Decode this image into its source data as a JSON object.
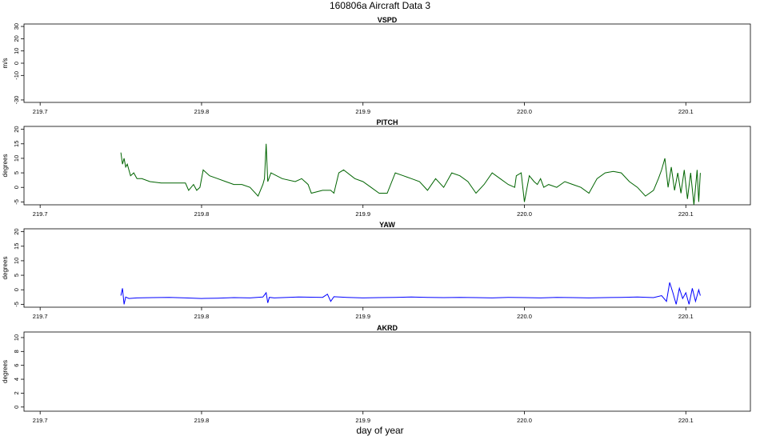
{
  "title": "160806a   Aircraft Data 3",
  "xlabel": "day of year",
  "chart_data": [
    {
      "type": "line",
      "title": "VSPD",
      "ylabel": "m/s",
      "xlim": [
        219.69,
        220.14
      ],
      "ylim": [
        -32,
        32
      ],
      "xticks": [
        219.7,
        219.8,
        219.9,
        220.0,
        220.1
      ],
      "xtick_labels": [
        "219.7",
        "219.8",
        "219.9",
        "220.0",
        "220.1"
      ],
      "yticks": [
        30,
        20,
        10,
        0,
        -10,
        -30
      ],
      "ytick_labels": [
        "30",
        "20",
        "10",
        "0",
        "-10",
        "-30"
      ],
      "color": "#000000",
      "series": []
    },
    {
      "type": "line",
      "title": "PITCH",
      "ylabel": "degrees",
      "xlim": [
        219.69,
        220.14
      ],
      "ylim": [
        -6,
        21
      ],
      "xticks": [
        219.7,
        219.8,
        219.9,
        220.0,
        220.1
      ],
      "xtick_labels": [
        "219.7",
        "219.8",
        "219.9",
        "220.0",
        "220.1"
      ],
      "yticks": [
        20,
        15,
        10,
        5,
        0,
        -5
      ],
      "ytick_labels": [
        "20",
        "15",
        "10",
        "5",
        "0",
        "-5"
      ],
      "color": "#006400",
      "series": [
        {
          "x": [
            219.75,
            219.751,
            219.752,
            219.753,
            219.754,
            219.756,
            219.758,
            219.76,
            219.763,
            219.768,
            219.775,
            219.785,
            219.79,
            219.792,
            219.795,
            219.797,
            219.799,
            219.801,
            219.805,
            219.81,
            219.815,
            219.82,
            219.825,
            219.83,
            219.835,
            219.838,
            219.839,
            219.84,
            219.841,
            219.843,
            219.85,
            219.858,
            219.862,
            219.866,
            219.868,
            219.875,
            219.88,
            219.882,
            219.885,
            219.888,
            219.895,
            219.9,
            219.905,
            219.91,
            219.915,
            219.92,
            219.925,
            219.93,
            219.935,
            219.94,
            219.945,
            219.95,
            219.955,
            219.96,
            219.965,
            219.97,
            219.975,
            219.98,
            219.985,
            219.99,
            219.994,
            219.995,
            219.998,
            220.0,
            220.003,
            220.006,
            220.008,
            220.01,
            220.012,
            220.015,
            220.02,
            220.025,
            220.03,
            220.035,
            220.04,
            220.045,
            220.05,
            220.055,
            220.06,
            220.065,
            220.07,
            220.075,
            220.08,
            220.083,
            220.085,
            220.087,
            220.089,
            220.091,
            220.093,
            220.095,
            220.097,
            220.099,
            220.101,
            220.103,
            220.105,
            220.107,
            220.108,
            220.109
          ],
          "y": [
            12,
            8,
            10,
            7,
            8,
            4,
            5,
            3,
            3,
            2,
            1.5,
            1.5,
            1.5,
            -1,
            1,
            -1,
            0,
            6,
            4,
            3,
            2,
            1,
            1,
            0,
            -3,
            1,
            3,
            15,
            2,
            5,
            3,
            2,
            3,
            1,
            -2,
            -1,
            -1,
            -2,
            5,
            6,
            3,
            2,
            0,
            -2,
            -2,
            5,
            4,
            3,
            2,
            -1,
            3,
            0,
            5,
            4,
            2,
            -2,
            1,
            5,
            3,
            1,
            0,
            4,
            5,
            -5,
            4,
            2,
            1,
            3,
            0,
            1,
            0,
            2,
            1,
            0,
            -2,
            3,
            5,
            5.5,
            5,
            2,
            0,
            -3,
            -1,
            3,
            6,
            10,
            0,
            7,
            -1,
            5,
            -2,
            6,
            -4,
            5,
            -6,
            6,
            -5,
            5
          ]
        }
      ]
    },
    {
      "type": "line",
      "title": "YAW",
      "ylabel": "degrees",
      "xlim": [
        219.69,
        220.14
      ],
      "ylim": [
        -6,
        21
      ],
      "xticks": [
        219.7,
        219.8,
        219.9,
        220.0,
        220.1
      ],
      "xtick_labels": [
        "219.7",
        "219.8",
        "219.9",
        "220.0",
        "220.1"
      ],
      "yticks": [
        20,
        15,
        10,
        5,
        0,
        -5
      ],
      "ytick_labels": [
        "20",
        "15",
        "10",
        "5",
        "0",
        "-5"
      ],
      "color": "#0000ff",
      "series": [
        {
          "x": [
            219.75,
            219.751,
            219.752,
            219.753,
            219.755,
            219.76,
            219.77,
            219.78,
            219.79,
            219.8,
            219.81,
            219.82,
            219.83,
            219.838,
            219.84,
            219.841,
            219.842,
            219.845,
            219.86,
            219.875,
            219.878,
            219.88,
            219.882,
            219.89,
            219.9,
            219.91,
            219.92,
            219.93,
            219.94,
            219.95,
            219.96,
            219.97,
            219.98,
            219.99,
            220.0,
            220.01,
            220.02,
            220.03,
            220.04,
            220.05,
            220.06,
            220.07,
            220.08,
            220.085,
            220.088,
            220.09,
            220.092,
            220.094,
            220.096,
            220.098,
            220.1,
            220.102,
            220.104,
            220.106,
            220.108,
            220.109
          ],
          "y": [
            -2,
            0.5,
            -5,
            -2.5,
            -3,
            -2.8,
            -2.7,
            -2.6,
            -2.8,
            -3,
            -2.9,
            -2.7,
            -2.8,
            -2.5,
            -1,
            -4.5,
            -2.6,
            -2.8,
            -2.5,
            -2.6,
            -1.5,
            -4,
            -2.4,
            -2.6,
            -2.8,
            -2.7,
            -2.6,
            -2.5,
            -2.6,
            -2.7,
            -2.6,
            -2.7,
            -2.8,
            -2.6,
            -2.7,
            -2.8,
            -2.6,
            -2.7,
            -2.8,
            -2.7,
            -2.6,
            -2.5,
            -2.7,
            -2,
            -4,
            2.5,
            -1,
            -5,
            0.5,
            -3,
            -1,
            -5,
            0.5,
            -4,
            0,
            -2
          ]
        }
      ]
    },
    {
      "type": "line",
      "title": "AKRD",
      "ylabel": "degrees",
      "xlim": [
        219.69,
        220.14
      ],
      "ylim": [
        -0.6,
        10.8
      ],
      "xticks": [
        219.7,
        219.8,
        219.9,
        220.0,
        220.1
      ],
      "xtick_labels": [
        "219.7",
        "219.8",
        "219.9",
        "220.0",
        "220.1"
      ],
      "yticks": [
        10,
        8,
        6,
        4,
        2,
        0
      ],
      "ytick_labels": [
        "10",
        "8",
        "6",
        "4",
        "2",
        "0"
      ],
      "color": "#000000",
      "series": []
    }
  ]
}
